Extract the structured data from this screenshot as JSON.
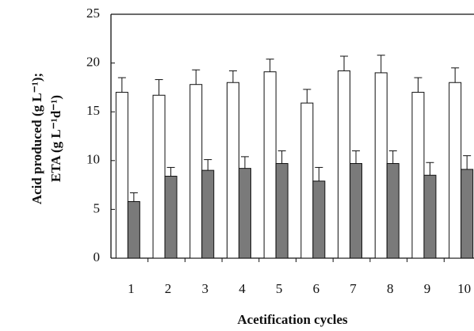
{
  "chart_data": {
    "type": "bar",
    "y_label_lines": [
      "Acid produced (g L⁻¹);",
      "ETA (g L⁻¹d⁻¹)"
    ],
    "x_label": "Acetification cycles",
    "categories": [
      "1",
      "2",
      "3",
      "4",
      "5",
      "6",
      "7",
      "8",
      "9",
      "10"
    ],
    "series": [
      {
        "color": "#ffffff",
        "values": [
          17.0,
          16.7,
          17.8,
          18.0,
          19.1,
          15.9,
          19.2,
          19.0,
          17.0,
          18.0
        ],
        "errors": [
          1.5,
          1.6,
          1.5,
          1.2,
          1.3,
          1.4,
          1.5,
          1.8,
          1.5,
          1.5
        ]
      },
      {
        "color": "#7a7a7a",
        "values": [
          5.8,
          8.4,
          9.0,
          9.2,
          9.7,
          7.9,
          9.7,
          9.7,
          8.5,
          9.1
        ],
        "errors": [
          0.9,
          0.9,
          1.1,
          1.2,
          1.3,
          1.4,
          1.3,
          1.3,
          1.3,
          1.4
        ]
      }
    ],
    "ylim": [
      0,
      25
    ],
    "yticks": [
      0,
      5,
      10,
      15,
      20,
      25
    ],
    "grid": false
  }
}
